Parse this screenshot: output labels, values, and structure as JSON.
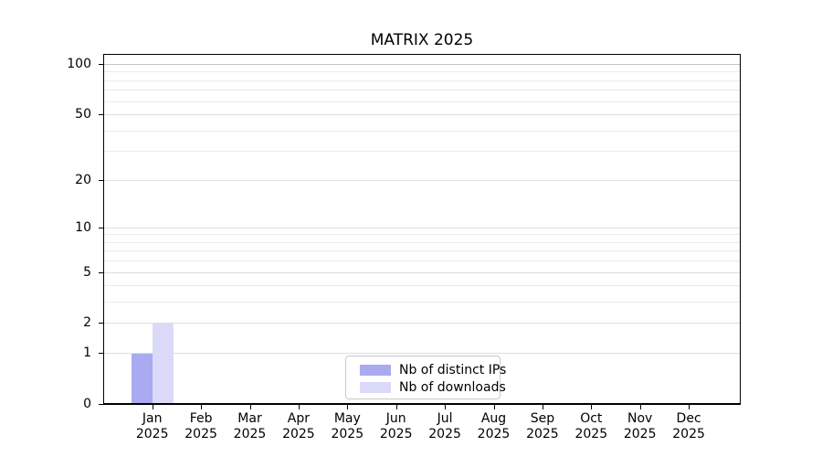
{
  "chart_data": {
    "type": "bar",
    "title": "MATRIX 2025",
    "x_months": [
      "Jan",
      "Feb",
      "Mar",
      "Apr",
      "May",
      "Jun",
      "Jul",
      "Aug",
      "Sep",
      "Oct",
      "Nov",
      "Dec"
    ],
    "x_year_label": "2025",
    "categories": [
      "Jan 2025",
      "Feb 2025",
      "Mar 2025",
      "Apr 2025",
      "May 2025",
      "Jun 2025",
      "Jul 2025",
      "Aug 2025",
      "Sep 2025",
      "Oct 2025",
      "Nov 2025",
      "Dec 2025"
    ],
    "series": [
      {
        "name": "Nb of distinct IPs",
        "color": "#aaaaf0",
        "values": [
          1,
          0,
          0,
          0,
          0,
          0,
          0,
          0,
          0,
          0,
          0,
          0
        ]
      },
      {
        "name": "Nb of downloads",
        "color": "#dadaf8",
        "values": [
          2,
          0,
          0,
          0,
          0,
          0,
          0,
          0,
          0,
          0,
          0,
          0
        ]
      }
    ],
    "y_ticks": [
      0,
      1,
      2,
      5,
      10,
      20,
      50,
      100
    ],
    "y_minor_gridlines": [
      3,
      4,
      6,
      7,
      8,
      9,
      30,
      40,
      60,
      70,
      80,
      90
    ],
    "y_scale": "log1p",
    "ylim": [
      0,
      115
    ],
    "grid": "horizontal",
    "legend_position": "lower center"
  },
  "colors": {
    "background": "#ffffff",
    "axis": "#000000",
    "grid_major": "#dedede",
    "grid_minor": "#ebebeb",
    "grid_top_line": "#c4c4c4",
    "legend_border": "#c9c9c9",
    "text": "#000000"
  }
}
